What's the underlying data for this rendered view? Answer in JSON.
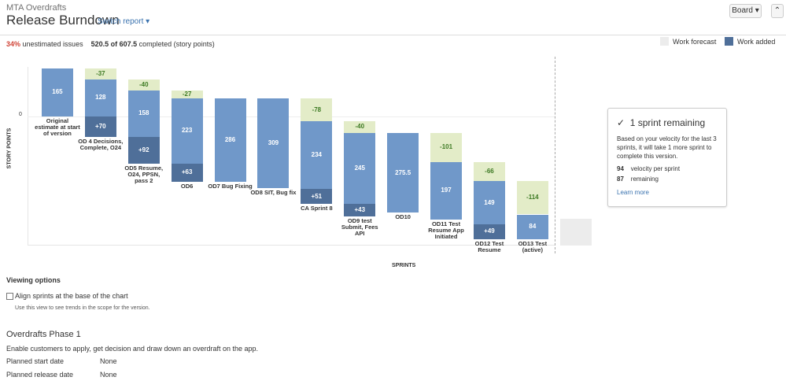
{
  "header": {
    "project": "MTA Overdrafts",
    "title": "Release Burndown",
    "switch_report": "Switch report",
    "board_button": "Board"
  },
  "stats": {
    "unestimated_pct": "34%",
    "unestimated_label": "unestimated issues",
    "completed": "520.5 of 607.5",
    "completed_label": "completed (story points)"
  },
  "chart_data": {
    "type": "waterfall-burndown",
    "y_label": "STORY POINTS",
    "x_label": "SPRINTS",
    "categories": [
      "Original estimate at start of version",
      "OD 4 Decisions, Complete, O24",
      "OD5 Resume, O24, PPSN, pass 2",
      "OD6",
      "OD7 Bug Fixing",
      "OD8 SIT, Bug fix",
      "CA Sprint 8",
      "OD9 test Submit, Fees API",
      "OD10",
      "OD11 Test Resume App Initiated",
      "OD12 Test Resume",
      "OD13 Test (active)"
    ],
    "series": [
      {
        "color": "#7098c9",
        "values": [
          165,
          128,
          158,
          223,
          286,
          309,
          234,
          245,
          275.5,
          197,
          149,
          84
        ]
      },
      {
        "color": "#e3ecc8",
        "label_color": "#3d7a23",
        "values": [
          null,
          -37,
          -40,
          -27,
          null,
          null,
          -78,
          -40,
          null,
          -101,
          -66,
          -114
        ]
      },
      {
        "name": "Work added",
        "color": "#4f6f99",
        "values": [
          null,
          70,
          92,
          63,
          null,
          null,
          51,
          43,
          null,
          null,
          49,
          null
        ],
        "value_labels": [
          null,
          "+70",
          "+92",
          "+63",
          null,
          null,
          "+51",
          "+43",
          null,
          null,
          "+49",
          null
        ]
      }
    ],
    "forecast": {
      "name": "Work forecast",
      "color": "#ececec"
    },
    "ylim": [
      -445,
      170
    ],
    "yticks": [
      0
    ]
  },
  "prediction": {
    "title": "1 sprint remaining",
    "text": "Based on your velocity for the last 3 sprints, it will take 1 more sprint to complete this version.",
    "velocity": 94,
    "velocity_label": "velocity per sprint",
    "remaining": 87,
    "remaining_label": "remaining",
    "link": "Learn more"
  },
  "viewing_options": {
    "title": "Viewing options",
    "checkbox_label": "Align sprints at the base of the chart",
    "hint": "Use this view to see trends in the scope for the version."
  },
  "version": {
    "name": "Overdrafts Phase 1",
    "description": "Enable customers to apply, get decision and draw down an overdraft on the app.",
    "fields": [
      [
        "Planned start date",
        "None"
      ],
      [
        "Planned release date",
        "None"
      ]
    ]
  }
}
